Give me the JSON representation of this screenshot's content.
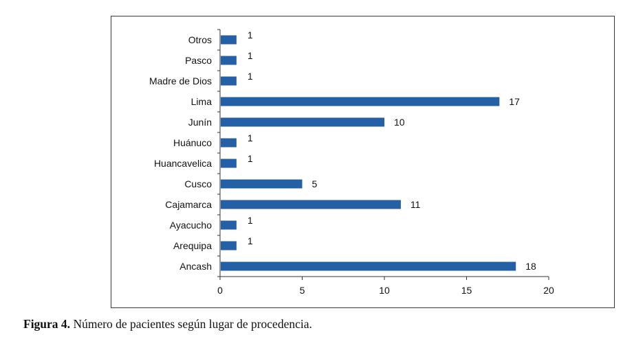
{
  "caption": {
    "label": "Figura 4.",
    "text": "Número de pacientes según lugar de procedencia."
  },
  "colors": {
    "bar": "#2360A5",
    "axis": "#333333"
  },
  "chart_data": {
    "type": "bar",
    "orientation": "horizontal",
    "title": "",
    "xlabel": "",
    "ylabel": "",
    "xlim": [
      0,
      20
    ],
    "xticks": [
      0,
      5,
      10,
      15,
      20
    ],
    "grid": false,
    "categories": [
      "Otros",
      "Pasco",
      "Madre de Dios",
      "Lima",
      "Junín",
      "Huánuco",
      "Huancavelica",
      "Cusco",
      "Cajamarca",
      "Ayacucho",
      "Arequipa",
      "Ancash"
    ],
    "values": [
      1,
      1,
      1,
      17,
      10,
      1,
      1,
      5,
      11,
      1,
      1,
      18
    ]
  }
}
